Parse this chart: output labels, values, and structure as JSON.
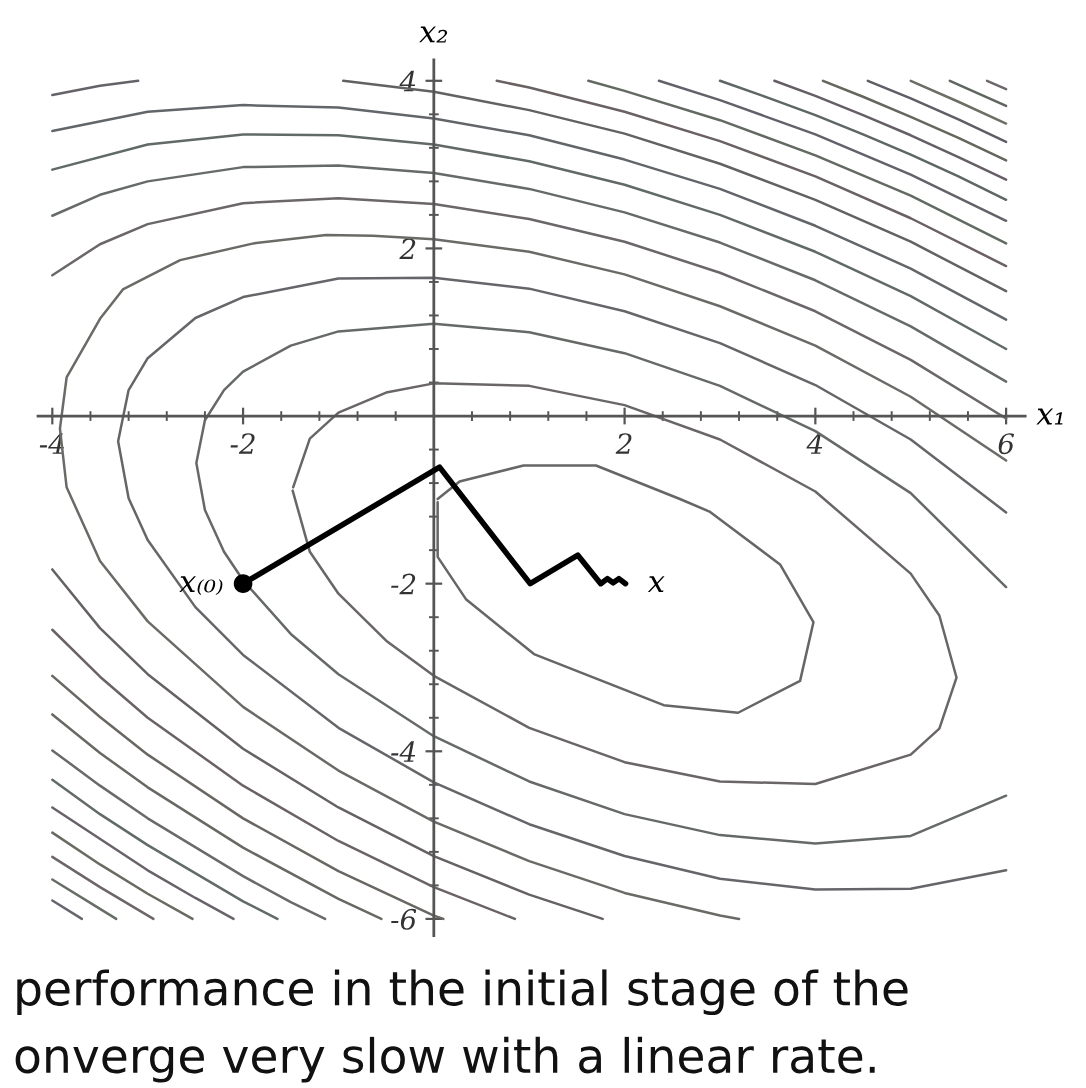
{
  "chart_data": {
    "type": "line",
    "xlabel": "x₁",
    "ylabel": "x₂",
    "xlim": [
      -4.15,
      6.2
    ],
    "ylim": [
      -6.2,
      4.25
    ],
    "xticks": [
      -4,
      {
        "value": -3.6,
        "label": null
      },
      {
        "value": -3.2,
        "label": null
      },
      {
        "value": -2.8,
        "label": null
      },
      {
        "value": -2.4,
        "label": null
      },
      -2,
      {
        "value": -1.6,
        "label": null
      },
      {
        "value": -1.2,
        "label": null
      },
      {
        "value": -0.8,
        "label": null
      },
      {
        "value": -0.4,
        "label": null
      },
      {
        "value": 0.4,
        "label": null
      },
      {
        "value": 0.8,
        "label": null
      },
      {
        "value": 1.2,
        "label": null
      },
      {
        "value": 1.6,
        "label": null
      },
      2,
      {
        "value": 2.4,
        "label": null
      },
      {
        "value": 2.8,
        "label": null
      },
      {
        "value": 3.2,
        "label": null
      },
      {
        "value": 3.6,
        "label": null
      },
      4,
      {
        "value": 4.4,
        "label": null
      },
      {
        "value": 4.8,
        "label": null
      },
      {
        "value": 5.2,
        "label": null
      },
      {
        "value": 5.6,
        "label": null
      },
      6
    ],
    "yticks": [
      -6,
      {
        "value": -5.6,
        "label": null
      },
      {
        "value": -5.2,
        "label": null
      },
      {
        "value": -4.8,
        "label": null
      },
      {
        "value": -4.4,
        "label": null
      },
      -4,
      {
        "value": -3.6,
        "label": null
      },
      {
        "value": -3.2,
        "label": null
      },
      {
        "value": -2.8,
        "label": null
      },
      {
        "value": -2.4,
        "label": null
      },
      -2,
      {
        "value": -1.6,
        "label": null
      },
      {
        "value": -1.2,
        "label": null
      },
      {
        "value": -0.8,
        "label": null
      },
      {
        "value": -0.4,
        "label": null
      },
      {
        "value": 0.4,
        "label": null
      },
      {
        "value": 0.8,
        "label": null
      },
      {
        "value": 1.2,
        "label": null
      },
      {
        "value": 1.6,
        "label": null
      },
      2,
      {
        "value": 2.4,
        "label": null
      },
      {
        "value": 2.8,
        "label": null
      },
      {
        "value": 3.2,
        "label": null
      },
      {
        "value": 3.6,
        "label": null
      },
      4
    ],
    "series": [
      {
        "color": "#666666",
        "x": [
          0.04,
          0.04,
          0.34,
          1.05,
          2.41,
          3.19,
          3.84,
          3.98,
          3.63,
          2.89,
          2.58,
          1.7,
          0.94,
          0.27,
          0.04
        ],
        "values": [
          -1.03,
          -1.68,
          -2.19,
          -2.84,
          -3.45,
          -3.54,
          -3.16,
          -2.46,
          -1.77,
          -1.14,
          -0.99,
          -0.59,
          -0.59,
          -0.78,
          -0.99
        ]
      },
      {
        "color": "#6a6666",
        "x": [
          -1.48,
          -1.3,
          -1,
          -0.5,
          0,
          1,
          2,
          3,
          4,
          5,
          5.3,
          5.48,
          5.3,
          5,
          4,
          3,
          2,
          1,
          0,
          -0.5,
          -1,
          -1.3,
          -1.475
        ],
        "values": [
          -0.89,
          -1.62,
          -2.12,
          -2.68,
          -3.1,
          -3.72,
          -4.13,
          -4.36,
          -4.39,
          -4.04,
          -3.73,
          -3.12,
          -2.38,
          -1.88,
          -0.9,
          -0.28,
          0.13,
          0.36,
          0.39,
          0.28,
          0.04,
          -0.27,
          -0.85
        ]
      },
      {
        "color": "#666a66",
        "x": [
          6,
          5,
          4,
          3,
          2,
          1,
          0,
          -1,
          -1.5,
          -2,
          -2.2,
          -2.4,
          -2.49,
          -2.4,
          -2.2,
          -2,
          -1.5,
          -1,
          0,
          1,
          2,
          3,
          4,
          5,
          6
        ],
        "values": [
          -2.04,
          -0.92,
          -0.18,
          0.36,
          0.75,
          1,
          1.1,
          1.01,
          0.84,
          0.53,
          0.31,
          -0.05,
          -0.56,
          -1.12,
          -1.62,
          -1.96,
          -2.6,
          -3.08,
          -3.82,
          -4.36,
          -4.75,
          -5,
          -5.1,
          -5.01,
          -4.53
        ]
      },
      {
        "color": "#66666a",
        "x": [
          6,
          5,
          4,
          3,
          2,
          1,
          0,
          -1,
          -2,
          -2.5,
          -3,
          -3.2,
          -3.31,
          -3.2,
          -3,
          -2.5,
          -2,
          -1,
          0,
          1,
          2,
          3,
          4,
          5,
          6
        ],
        "values": [
          -1.15,
          -0.28,
          0.37,
          0.87,
          1.25,
          1.52,
          1.65,
          1.64,
          1.42,
          1.17,
          0.69,
          0.31,
          -0.3,
          -0.98,
          -1.48,
          -2.28,
          -2.85,
          -3.72,
          -4.37,
          -4.87,
          -5.25,
          -5.52,
          -5.65,
          -5.64,
          -5.42
        ]
      },
      {
        "color": "#6a6a66",
        "x": [
          6,
          5,
          4,
          3,
          2,
          1,
          0,
          -0.64,
          -1.13,
          -1.89,
          -2.66,
          -3.26,
          -3.5,
          -3.85,
          -3.92,
          -3.85,
          -3.5,
          -3,
          -2,
          -1,
          0,
          1,
          2,
          3,
          3.2
        ],
        "values": [
          -0.53,
          0.23,
          0.84,
          1.31,
          1.69,
          1.96,
          2.11,
          2.15,
          2.16,
          2.06,
          1.86,
          1.51,
          1.16,
          0.46,
          -0.15,
          -0.85,
          -1.73,
          -2.45,
          -3.47,
          -4.23,
          -4.84,
          -5.31,
          -5.69,
          -5.96,
          -6
        ]
      },
      {
        "color": "#6a666a",
        "x": [
          -4,
          -3.5,
          -3,
          -2,
          -1,
          0,
          1,
          2,
          3,
          4,
          5,
          6
        ],
        "values": [
          1.68,
          2.05,
          2.29,
          2.54,
          2.6,
          2.53,
          2.35,
          2.08,
          1.71,
          1.25,
          0.67,
          -0.03
        ]
      },
      {
        "color": "#666262",
        "x": [
          -4,
          -3.5,
          -3,
          -2,
          -1,
          0,
          1,
          1.77
        ],
        "values": [
          -1.83,
          -2.53,
          -3.08,
          -3.97,
          -4.67,
          -5.25,
          -5.71,
          -6
        ]
      },
      {
        "color": "#666a6a",
        "x": [
          -4,
          -3.5,
          -3,
          -2,
          -1,
          0,
          1,
          2,
          3,
          4,
          5,
          6
        ],
        "values": [
          2.39,
          2.64,
          2.8,
          2.97,
          2.99,
          2.9,
          2.71,
          2.43,
          2.07,
          1.62,
          1.07,
          0.41
        ]
      },
      {
        "color": "#6a6266",
        "x": [
          -4,
          -3.5,
          -3,
          -2,
          -1,
          0,
          0.85
        ],
        "values": [
          -2.55,
          -3.11,
          -3.6,
          -4.41,
          -5.07,
          -5.62,
          -6
        ]
      },
      {
        "color": "#626a66",
        "x": [
          -4,
          -3,
          -2,
          -1,
          0,
          1,
          2,
          3,
          4,
          5,
          6
        ],
        "values": [
          2.94,
          3.24,
          3.36,
          3.35,
          3.24,
          3.04,
          2.76,
          2.4,
          1.96,
          1.43,
          0.8
        ]
      },
      {
        "color": "#6a6662",
        "x": [
          -4,
          -3.5,
          -3,
          -2,
          -1,
          0,
          0.1
        ],
        "values": [
          -3.1,
          -3.59,
          -4.04,
          -4.8,
          -5.43,
          -5.96,
          -6
        ]
      },
      {
        "color": "#62666a",
        "x": [
          -4,
          -3,
          -2,
          -1,
          0,
          1,
          2,
          3,
          4,
          5,
          6
        ],
        "values": [
          3.4,
          3.63,
          3.71,
          3.68,
          3.55,
          3.35,
          3.06,
          2.71,
          2.27,
          1.76,
          1.15
        ]
      },
      {
        "color": "#666a62",
        "x": [
          -4,
          -3.5,
          -3,
          -2,
          -1,
          -0.55
        ],
        "values": [
          -3.56,
          -4.02,
          -4.43,
          -5.15,
          -5.76,
          -6
        ]
      },
      {
        "color": "#66626a",
        "x": [
          -4,
          -3.5,
          -3.1
        ],
        "values": [
          3.83,
          3.94,
          4
        ]
      },
      {
        "color": "#626262",
        "x": [
          -0.95,
          0,
          1,
          2,
          3,
          4,
          5,
          6
        ],
        "values": [
          4,
          3.87,
          3.65,
          3.37,
          3.01,
          2.58,
          2.08,
          1.49
        ]
      },
      {
        "color": "#6a6a6a",
        "x": [
          -4,
          -3.5,
          -3,
          -2,
          -1.5,
          -1.14
        ],
        "values": [
          -3.99,
          -4.41,
          -4.8,
          -5.49,
          -5.8,
          -6
        ]
      },
      {
        "color": "#6a6262",
        "x": [
          0.66,
          1,
          2,
          3,
          4,
          5,
          6
        ],
        "values": [
          4,
          3.92,
          3.63,
          3.28,
          2.86,
          2.36,
          1.79
        ]
      },
      {
        "color": "#626a6a",
        "x": [
          -4,
          -3.5,
          -3,
          -2,
          -1.64
        ],
        "values": [
          -4.34,
          -4.75,
          -5.12,
          -5.79,
          -6
        ]
      },
      {
        "color": "#626a62",
        "x": [
          1.62,
          2,
          3,
          4,
          5,
          6
        ],
        "values": [
          4,
          3.88,
          3.53,
          3.11,
          2.63,
          2.06
        ]
      },
      {
        "color": "#6a626a",
        "x": [
          -4,
          -3,
          -2.5,
          -2.1
        ],
        "values": [
          -4.67,
          -5.42,
          -5.75,
          -6
        ]
      },
      {
        "color": "#62626a",
        "x": [
          2.36,
          3,
          4,
          5,
          6
        ],
        "values": [
          4,
          3.77,
          3.36,
          2.88,
          2.33
        ]
      },
      {
        "color": "#6a6a62",
        "x": [
          -4,
          -3.5,
          -3,
          -2.53
        ],
        "values": [
          -4.97,
          -5.35,
          -5.7,
          -6
        ]
      },
      {
        "color": "#5e6666",
        "x": [
          3,
          3.5,
          4,
          4.5,
          5,
          5.5,
          6
        ],
        "values": [
          4,
          3.8,
          3.59,
          3.36,
          3.12,
          2.86,
          2.58
        ]
      },
      {
        "color": "#6e6666",
        "x": [
          -4,
          -3.5,
          -2.94
        ],
        "values": [
          -5.26,
          -5.62,
          -6
        ]
      },
      {
        "color": "#665e66",
        "x": [
          3.57,
          4,
          4.5,
          5,
          5.5,
          6
        ],
        "values": [
          4,
          3.82,
          3.59,
          3.35,
          3.09,
          2.82
        ]
      },
      {
        "color": "#666e66",
        "x": [
          -4,
          -3.5,
          -3.33
        ],
        "values": [
          -5.53,
          -5.88,
          -6
        ]
      },
      {
        "color": "#66665e",
        "x": [
          4.08,
          4.5,
          5,
          5.5,
          6
        ],
        "values": [
          4,
          3.81,
          3.57,
          3.32,
          3.05
        ]
      },
      {
        "color": "#66666e",
        "x": [
          -4,
          -3.69
        ],
        "values": [
          -5.78,
          -6
        ]
      },
      {
        "color": "#5e5e66",
        "x": [
          4.55,
          5,
          5.5,
          6
        ],
        "values": [
          4,
          3.79,
          3.54,
          3.27
        ]
      },
      {
        "color": "#6e6e66",
        "x": [
          5,
          5.5,
          6
        ],
        "values": [
          4,
          3.75,
          3.49
        ]
      },
      {
        "color": "#5e665e",
        "x": [
          5.41,
          6
        ],
        "values": [
          4,
          3.7
        ]
      },
      {
        "color": "#6e666e",
        "x": [
          5.8,
          6
        ],
        "values": [
          4,
          3.9
        ]
      },
      {
        "color": "#000000",
        "x": [
          -2,
          0.06,
          1.01,
          1.51,
          1.75,
          1.82,
          1.88,
          1.94,
          2.01
        ],
        "values": [
          -2,
          -0.61,
          -2,
          -1.66,
          -2,
          -1.94,
          -1.99,
          -1.94,
          -2
        ]
      },
      {
        "type": "scatter",
        "marker": "circle",
        "color": "#000000",
        "x": [
          -2
        ],
        "values": [
          -2
        ]
      }
    ],
    "annotations": [
      {
        "text": "x₍₀₎",
        "x": -2,
        "y": -2
      },
      {
        "text": "x",
        "x": 2.01,
        "y": -2
      },
      "performance in the initial stage of the",
      "onverge very slow with a linear rate."
    ]
  }
}
